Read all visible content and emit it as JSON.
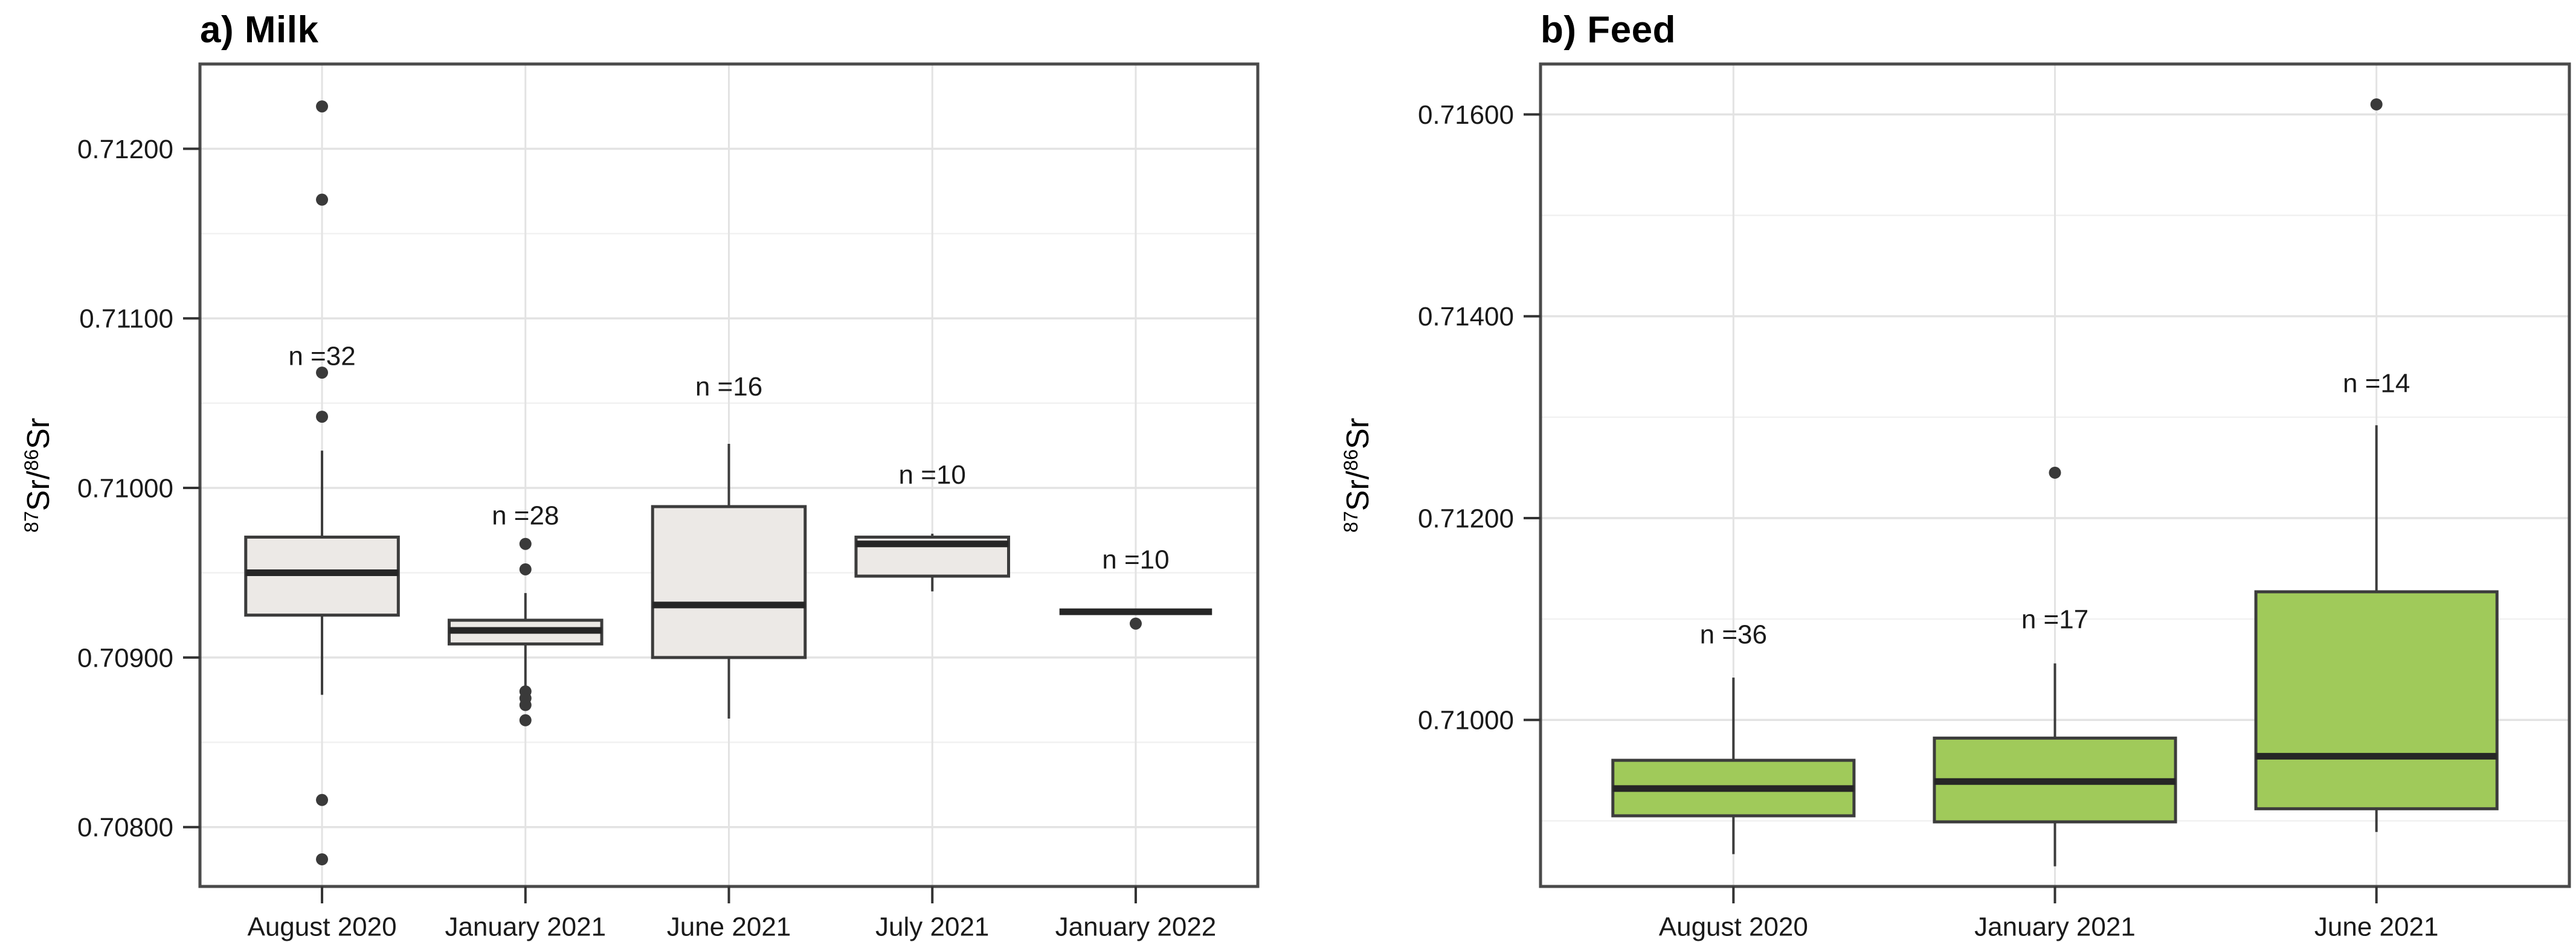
{
  "colors": {
    "background": "#FFFFFF",
    "panel_border": "#4A4A4A",
    "grid_major": "#E3E3E3",
    "grid_minor": "#F1F1F1",
    "box_border": "#3C3C3C",
    "median": "#262626",
    "whisker": "#3C3C3C",
    "outlier": "#3A3A3A",
    "tick_mark": "#333333",
    "text": "#1A1A1A",
    "milk_box_fill": "#ECE9E6",
    "feed_box_fill": "#A0CA5A"
  },
  "chart_data": [
    {
      "type": "boxplot",
      "panel": "a",
      "title": "a) Milk",
      "ylabel_plain": "87Sr/86Sr",
      "ylabel_parts": [
        {
          "t": "sup",
          "v": "87"
        },
        {
          "t": "txt",
          "v": "Sr/"
        },
        {
          "t": "sup",
          "v": "86"
        },
        {
          "t": "txt",
          "v": "Sr"
        }
      ],
      "xlabel": "",
      "grid": true,
      "legend": false,
      "box_fill": "#ECE9E6",
      "ylim": [
        0.70765,
        0.7125
      ],
      "yticks": [
        {
          "value": 0.712,
          "label": "0.71200"
        },
        {
          "value": 0.711,
          "label": "0.71100"
        },
        {
          "value": 0.71,
          "label": "0.71000"
        },
        {
          "value": 0.709,
          "label": "0.70900"
        },
        {
          "value": 0.708,
          "label": "0.70800"
        }
      ],
      "yticks_minor": [
        0.7115,
        0.7105,
        0.7095,
        0.7085
      ],
      "categories": [
        "August 2020",
        "January 2021",
        "June 2021",
        "July 2021",
        "January 2022"
      ],
      "boxes": [
        {
          "category": "August 2020",
          "n": 32,
          "n_label": "n =32",
          "n_label_y": 0.71078,
          "whisker_low": 0.70878,
          "q1": 0.70925,
          "median": 0.7095,
          "q3": 0.70971,
          "whisker_high": 0.71022,
          "outliers": [
            0.71225,
            0.7117,
            0.71068,
            0.71042,
            0.70816,
            0.70781
          ]
        },
        {
          "category": "January 2021",
          "n": 28,
          "n_label": "n =28",
          "n_label_y": 0.70984,
          "whisker_low": 0.70882,
          "q1": 0.70908,
          "median": 0.70916,
          "q3": 0.70922,
          "whisker_high": 0.70938,
          "outliers": [
            0.70967,
            0.70952,
            0.7088,
            0.70876,
            0.70872,
            0.70863
          ]
        },
        {
          "category": "June 2021",
          "n": 16,
          "n_label": "n =16",
          "n_label_y": 0.7106,
          "whisker_low": 0.70864,
          "q1": 0.709,
          "median": 0.70931,
          "q3": 0.70989,
          "whisker_high": 0.71026,
          "outliers": []
        },
        {
          "category": "July 2021",
          "n": 10,
          "n_label": "n =10",
          "n_label_y": 0.71008,
          "whisker_low": 0.70939,
          "q1": 0.70948,
          "median": 0.70967,
          "q3": 0.70971,
          "whisker_high": 0.70973,
          "outliers": []
        },
        {
          "category": "January 2022",
          "n": 10,
          "n_label": "n =10",
          "n_label_y": 0.70958,
          "whisker_low": 0.70927,
          "q1": 0.70927,
          "median": 0.70927,
          "q3": 0.70927,
          "whisker_high": 0.70927,
          "outliers": [
            0.7092
          ]
        }
      ]
    },
    {
      "type": "boxplot",
      "panel": "b",
      "title": "b) Feed",
      "ylabel_plain": "87Sr/86Sr",
      "ylabel_parts": [
        {
          "t": "sup",
          "v": "87"
        },
        {
          "t": "txt",
          "v": "Sr/"
        },
        {
          "t": "sup",
          "v": "86"
        },
        {
          "t": "txt",
          "v": "Sr"
        }
      ],
      "xlabel": "",
      "grid": true,
      "legend": false,
      "box_fill": "#A0CA5A",
      "ylim": [
        0.70835,
        0.7165
      ],
      "yticks": [
        {
          "value": 0.716,
          "label": "0.71600"
        },
        {
          "value": 0.714,
          "label": "0.71400"
        },
        {
          "value": 0.712,
          "label": "0.71200"
        },
        {
          "value": 0.71,
          "label": "0.71000"
        }
      ],
      "yticks_minor": [
        0.715,
        0.713,
        0.711,
        0.709
      ],
      "categories": [
        "August 2020",
        "January 2021",
        "June 2021"
      ],
      "boxes": [
        {
          "category": "August 2020",
          "n": 36,
          "n_label": "n =36",
          "n_label_y": 0.71085,
          "whisker_low": 0.70867,
          "q1": 0.70905,
          "median": 0.70932,
          "q3": 0.7096,
          "whisker_high": 0.71042,
          "outliers": []
        },
        {
          "category": "January 2021",
          "n": 17,
          "n_label": "n =17",
          "n_label_y": 0.711,
          "whisker_low": 0.70855,
          "q1": 0.70899,
          "median": 0.70939,
          "q3": 0.70982,
          "whisker_high": 0.71056,
          "outliers": [
            0.71245
          ]
        },
        {
          "category": "June 2021",
          "n": 14,
          "n_label": "n =14",
          "n_label_y": 0.71334,
          "whisker_low": 0.70889,
          "q1": 0.70912,
          "median": 0.70964,
          "q3": 0.71127,
          "whisker_high": 0.71292,
          "outliers": [
            0.7161
          ]
        }
      ]
    }
  ]
}
